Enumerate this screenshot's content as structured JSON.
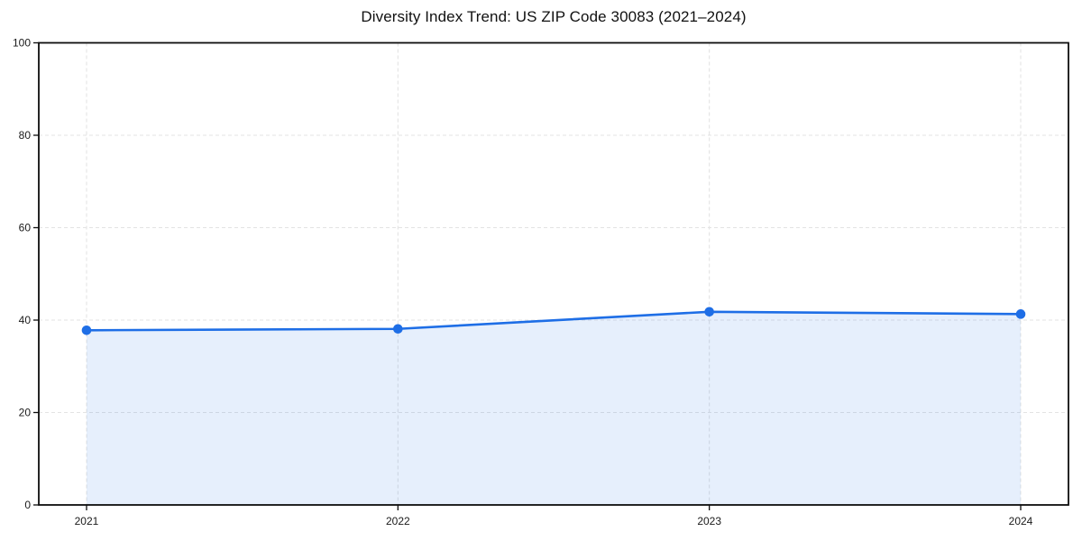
{
  "chart_data": {
    "type": "area",
    "title": "Diversity Index Trend: US ZIP Code 30083 (2021–2024)",
    "categories": [
      "2021",
      "2022",
      "2023",
      "2024"
    ],
    "series": [
      {
        "name": "Diversity Index",
        "values": [
          37.8,
          38.1,
          41.8,
          41.3
        ]
      }
    ],
    "xlabel": "",
    "ylabel": "",
    "ylim": [
      0,
      100
    ],
    "yticks": [
      0,
      20,
      40,
      60,
      80,
      100
    ],
    "grid": "dashed-both-axes",
    "legend": "none",
    "markers": true,
    "area_fill": true,
    "colors": {
      "line": "#1e6ee6",
      "marker": "#1e6ee6",
      "area_opacity": 0.11,
      "grid": "#e3e3e3",
      "spine": "#0d0d0d",
      "tick_text": "#1a1a1a",
      "background": "#ffffff"
    }
  }
}
